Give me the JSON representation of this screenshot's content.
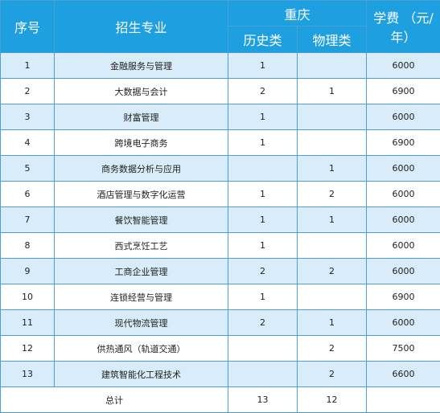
{
  "header": {
    "col_index": "序号",
    "col_major": "招生专业",
    "col_region": "重庆",
    "col_history": "历史类",
    "col_physics": "物理类",
    "col_tuition": "学费 （元/年）"
  },
  "rows": [
    {
      "no": "1",
      "major": "金融服务与管理",
      "history": "1",
      "physics": "",
      "tuition": "6000"
    },
    {
      "no": "2",
      "major": "大数据与会计",
      "history": "2",
      "physics": "1",
      "tuition": "6900"
    },
    {
      "no": "3",
      "major": "财富管理",
      "history": "1",
      "physics": "",
      "tuition": "6000"
    },
    {
      "no": "4",
      "major": "跨境电子商务",
      "history": "1",
      "physics": "",
      "tuition": "6900"
    },
    {
      "no": "5",
      "major": "商务数据分析与应用",
      "history": "",
      "physics": "1",
      "tuition": "6000"
    },
    {
      "no": "6",
      "major": "酒店管理与数字化运营",
      "history": "1",
      "physics": "2",
      "tuition": "6000"
    },
    {
      "no": "7",
      "major": "餐饮智能管理",
      "history": "1",
      "physics": "1",
      "tuition": "6000"
    },
    {
      "no": "8",
      "major": "西式烹饪工艺",
      "history": "1",
      "physics": "",
      "tuition": "6000"
    },
    {
      "no": "9",
      "major": "工商企业管理",
      "history": "2",
      "physics": "2",
      "tuition": "6000"
    },
    {
      "no": "10",
      "major": "连锁经营与管理",
      "history": "1",
      "physics": "",
      "tuition": "6900"
    },
    {
      "no": "11",
      "major": "现代物流管理",
      "history": "2",
      "physics": "1",
      "tuition": "6000"
    },
    {
      "no": "12",
      "major": "供热通风（轨道交通）",
      "history": "",
      "physics": "2",
      "tuition": "7500"
    },
    {
      "no": "13",
      "major": "建筑智能化工程技术",
      "history": "",
      "physics": "2",
      "tuition": "6600"
    }
  ],
  "total": {
    "label": "总计",
    "history": "13",
    "physics": "12",
    "tuition": ""
  }
}
